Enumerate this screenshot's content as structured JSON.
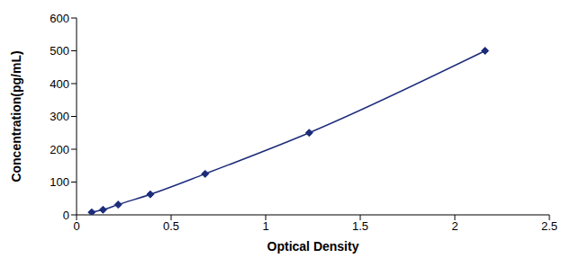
{
  "chart_data": {
    "type": "line",
    "x_label": "Optical Density",
    "y_label": "Concentration(pg/mL)",
    "x": [
      0.08,
      0.14,
      0.22,
      0.39,
      0.68,
      1.23,
      2.16
    ],
    "values": [
      7.8,
      15.6,
      31.2,
      62.5,
      125,
      250,
      500
    ],
    "color": "#1c2b7a",
    "marker": "diamond",
    "line_style": "solid",
    "xlim": [
      0,
      2.5
    ],
    "xticks": [
      0,
      0.5,
      1,
      1.5,
      2,
      2.5
    ],
    "ylim": [
      0,
      600
    ],
    "yticks": [
      0,
      100,
      200,
      300,
      400,
      500,
      600
    ],
    "grid": false
  }
}
